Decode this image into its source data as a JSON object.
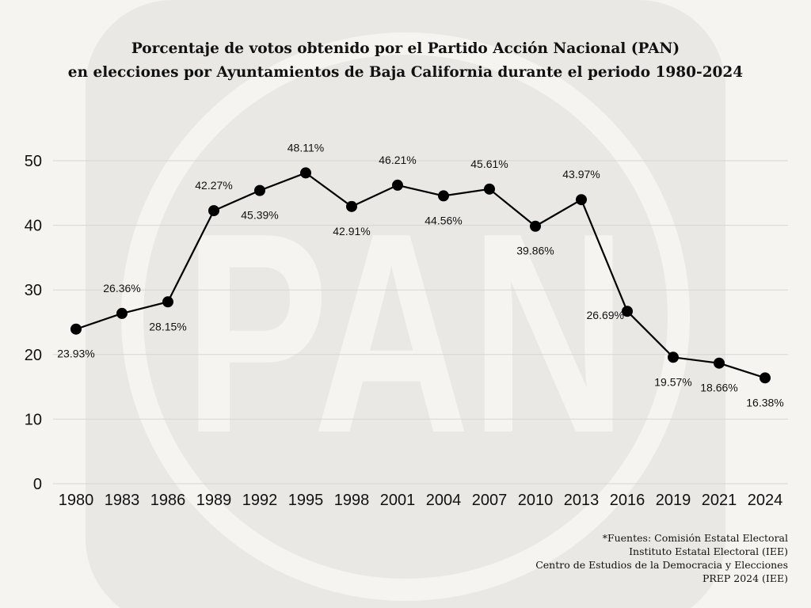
{
  "colors": {
    "background": "#f5f4f0",
    "watermark": "#e9e8e4",
    "line": "#000000",
    "grid": "#d6d6d6"
  },
  "chart_data": {
    "type": "line",
    "title": "Porcentaje de votos obtenido por el Partido Acción Nacional (PAN)",
    "subtitle": "en elecciones por Ayuntamientos de Baja California durante el periodo 1980-2024",
    "categories": [
      "1980",
      "1983",
      "1986",
      "1989",
      "1992",
      "1995",
      "1998",
      "2001",
      "2004",
      "2007",
      "2010",
      "2013",
      "2016",
      "2019",
      "2021",
      "2024"
    ],
    "series": [
      {
        "name": "PAN",
        "values": [
          23.93,
          26.36,
          28.15,
          42.27,
          45.39,
          48.11,
          42.91,
          46.21,
          44.56,
          45.61,
          39.86,
          43.97,
          26.69,
          19.57,
          18.66,
          16.38
        ],
        "labels": [
          "23.93%",
          "26.36%",
          "28.15%",
          "42.27%",
          "45.39%",
          "48.11%",
          "42.91%",
          "46.21%",
          "44.56%",
          "45.61%",
          "39.86%",
          "43.97%",
          "26.69%",
          "19.57%",
          "18.66%",
          "16.38%"
        ],
        "label_position": [
          "below",
          "above",
          "below",
          "above",
          "below",
          "above",
          "below",
          "above",
          "below",
          "above",
          "below",
          "above",
          "left",
          "below",
          "below",
          "below"
        ]
      }
    ],
    "yticks": [
      "0",
      "10",
      "20",
      "30",
      "40",
      "50"
    ],
    "ylim": [
      0,
      50
    ],
    "xlabel": "",
    "ylabel": "",
    "grid": true,
    "watermark_text": "PAN"
  },
  "sources": [
    "*Fuentes: Comisión Estatal Electoral",
    "Instituto Estatal Electoral (IEE)",
    "Centro de Estudios de la Democracia y Elecciones",
    "PREP 2024 (IEE)"
  ]
}
